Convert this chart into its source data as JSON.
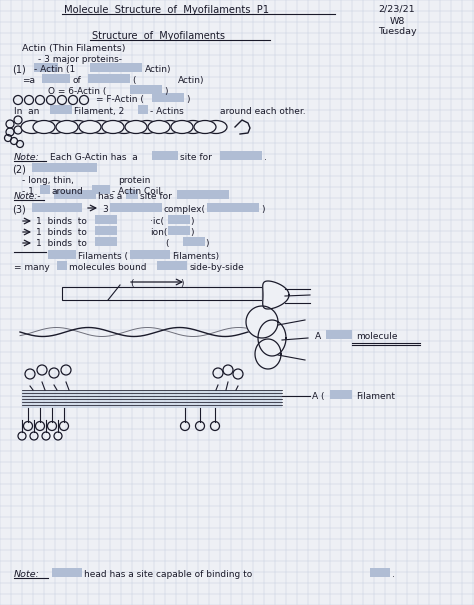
{
  "bg_color": "#eef0f5",
  "grid_color": "#c5cfe0",
  "text_color": "#1a1a2a",
  "highlight_color": "#b0bdd4",
  "highlight_color2": "#8fa5c0",
  "title": "Molecule  Structure  of  Myofilaments  P1",
  "date": "2/23/21",
  "week": "W8",
  "day": "Tuesday",
  "subtitle": "Structure  of  Myofilaments"
}
